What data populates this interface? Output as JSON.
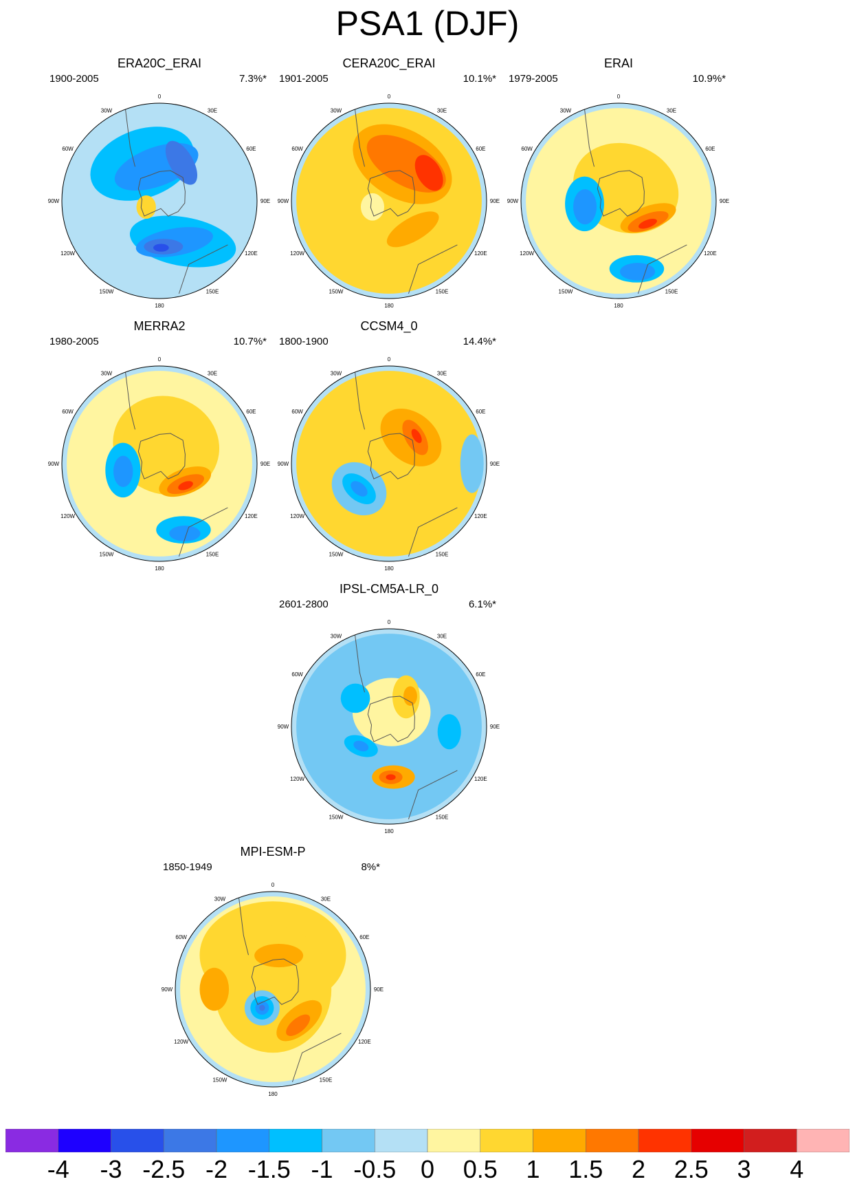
{
  "title": "PSA1 (DJF)",
  "lon_labels": [
    "0",
    "30E",
    "60E",
    "90E",
    "120E",
    "150E",
    "180",
    "150W",
    "120W",
    "90W",
    "60W",
    "30W"
  ],
  "panels": [
    {
      "id": "era20c",
      "name": "ERA20C_ERAI",
      "years": "1900-2005",
      "pct": "7.3%*",
      "blobs": [
        {
          "level": -1,
          "angle": -25,
          "dist": 0.42,
          "rx": 0.55,
          "ry": 0.35,
          "rot": -20
        },
        {
          "level": -1.5,
          "angle": -5,
          "dist": 0.35,
          "rx": 0.45,
          "ry": 0.2,
          "rot": -20
        },
        {
          "level": -2,
          "angle": 30,
          "dist": 0.45,
          "rx": 0.25,
          "ry": 0.12,
          "rot": 60
        },
        {
          "level": -1,
          "angle": 150,
          "dist": 0.48,
          "rx": 0.55,
          "ry": 0.25,
          "rot": 10
        },
        {
          "level": -1.5,
          "angle": 160,
          "dist": 0.45,
          "rx": 0.4,
          "ry": 0.14,
          "rot": -10
        },
        {
          "level": -2,
          "angle": 175,
          "dist": 0.47,
          "rx": 0.2,
          "ry": 0.08,
          "rot": 0
        },
        {
          "level": -2.5,
          "angle": 178,
          "dist": 0.48,
          "rx": 0.08,
          "ry": 0.04,
          "rot": 0
        },
        {
          "level": 0.5,
          "angle": -115,
          "dist": 0.15,
          "rx": 0.1,
          "ry": 0.12,
          "rot": 0
        }
      ]
    },
    {
      "id": "cera20c",
      "name": "CERA20C_ERAI",
      "years": "1901-2005",
      "pct": "10.1%*",
      "blobs": [
        {
          "level": 0.5,
          "angle": 0,
          "dist": 0.0,
          "rx": 0.95,
          "ry": 0.95,
          "rot": 0
        },
        {
          "level": 1,
          "angle": 20,
          "dist": 0.4,
          "rx": 0.55,
          "ry": 0.35,
          "rot": 30
        },
        {
          "level": 1.5,
          "angle": 25,
          "dist": 0.42,
          "rx": 0.45,
          "ry": 0.22,
          "rot": 30
        },
        {
          "level": 2,
          "angle": 55,
          "dist": 0.5,
          "rx": 0.2,
          "ry": 0.12,
          "rot": 60
        },
        {
          "level": 1,
          "angle": 140,
          "dist": 0.38,
          "rx": 0.3,
          "ry": 0.12,
          "rot": -30
        },
        {
          "level": 0,
          "angle": -110,
          "dist": 0.18,
          "rx": 0.12,
          "ry": 0.14,
          "rot": 0
        }
      ]
    },
    {
      "id": "erai",
      "name": "ERAI",
      "years": "1979-2005",
      "pct": "10.9%*",
      "blobs": [
        {
          "level": 0,
          "angle": 0,
          "dist": 0.0,
          "rx": 0.95,
          "ry": 0.95,
          "rot": 0
        },
        {
          "level": 0.5,
          "angle": 30,
          "dist": 0.15,
          "rx": 0.55,
          "ry": 0.45,
          "rot": 20
        },
        {
          "level": 1,
          "angle": 120,
          "dist": 0.35,
          "rx": 0.3,
          "ry": 0.12,
          "rot": -20
        },
        {
          "level": 1.5,
          "angle": 125,
          "dist": 0.37,
          "rx": 0.22,
          "ry": 0.08,
          "rot": -20
        },
        {
          "level": 2,
          "angle": 128,
          "dist": 0.38,
          "rx": 0.1,
          "ry": 0.04,
          "rot": -20
        },
        {
          "level": -1,
          "angle": -95,
          "dist": 0.35,
          "rx": 0.2,
          "ry": 0.28,
          "rot": 0
        },
        {
          "level": -1.5,
          "angle": -100,
          "dist": 0.35,
          "rx": 0.12,
          "ry": 0.18,
          "rot": 0
        },
        {
          "level": -1,
          "angle": 165,
          "dist": 0.72,
          "rx": 0.28,
          "ry": 0.14,
          "rot": 0
        },
        {
          "level": -1.5,
          "angle": 165,
          "dist": 0.75,
          "rx": 0.18,
          "ry": 0.09,
          "rot": 0
        }
      ]
    },
    {
      "id": "merra2",
      "name": "MERRA2",
      "years": "1980-2005",
      "pct": "10.7%*",
      "blobs": [
        {
          "level": 0,
          "angle": 0,
          "dist": 0.0,
          "rx": 0.95,
          "ry": 0.95,
          "rot": 0
        },
        {
          "level": 0.5,
          "angle": 20,
          "dist": 0.2,
          "rx": 0.55,
          "ry": 0.5,
          "rot": 20
        },
        {
          "level": 1,
          "angle": 125,
          "dist": 0.32,
          "rx": 0.28,
          "ry": 0.13,
          "rot": -20
        },
        {
          "level": 1.5,
          "angle": 128,
          "dist": 0.34,
          "rx": 0.2,
          "ry": 0.08,
          "rot": -20
        },
        {
          "level": 2,
          "angle": 130,
          "dist": 0.35,
          "rx": 0.08,
          "ry": 0.04,
          "rot": -20
        },
        {
          "level": -1,
          "angle": -100,
          "dist": 0.38,
          "rx": 0.18,
          "ry": 0.28,
          "rot": 0
        },
        {
          "level": -1.5,
          "angle": -102,
          "dist": 0.38,
          "rx": 0.1,
          "ry": 0.16,
          "rot": 0
        },
        {
          "level": -1,
          "angle": 160,
          "dist": 0.72,
          "rx": 0.28,
          "ry": 0.14,
          "rot": 0
        },
        {
          "level": -1.5,
          "angle": 160,
          "dist": 0.76,
          "rx": 0.16,
          "ry": 0.08,
          "rot": 0
        }
      ]
    },
    {
      "id": "ccsm4",
      "name": "CCSM4_0",
      "years": "1800-1900",
      "pct": "14.4%*",
      "blobs": [
        {
          "level": 0.5,
          "angle": 0,
          "dist": 0.0,
          "rx": 0.95,
          "ry": 0.95,
          "rot": 0
        },
        {
          "level": 0.5,
          "angle": 20,
          "dist": 0.3,
          "rx": 0.6,
          "ry": 0.5,
          "rot": 20
        },
        {
          "level": 1,
          "angle": 40,
          "dist": 0.35,
          "rx": 0.35,
          "ry": 0.25,
          "rot": 40
        },
        {
          "level": 1.5,
          "angle": 45,
          "dist": 0.38,
          "rx": 0.2,
          "ry": 0.1,
          "rot": 60
        },
        {
          "level": 2,
          "angle": 45,
          "dist": 0.4,
          "rx": 0.08,
          "ry": 0.04,
          "rot": 60
        },
        {
          "level": -0.5,
          "angle": -130,
          "dist": 0.4,
          "rx": 0.3,
          "ry": 0.25,
          "rot": 40
        },
        {
          "level": -1,
          "angle": -130,
          "dist": 0.4,
          "rx": 0.2,
          "ry": 0.12,
          "rot": 40
        },
        {
          "level": -1.5,
          "angle": -130,
          "dist": 0.4,
          "rx": 0.1,
          "ry": 0.06,
          "rot": 40
        },
        {
          "level": -0.5,
          "angle": 90,
          "dist": 0.85,
          "rx": 0.12,
          "ry": 0.3,
          "rot": 0
        }
      ]
    },
    {
      "id": "ipsl",
      "name": "IPSL-CM5A-LR_0",
      "years": "2601-2800",
      "pct": "6.1%*",
      "blobs": [
        {
          "level": -0.5,
          "angle": 0,
          "dist": 0.0,
          "rx": 0.95,
          "ry": 0.95,
          "rot": 0
        },
        {
          "level": 0,
          "angle": 10,
          "dist": 0.15,
          "rx": 0.4,
          "ry": 0.35,
          "rot": 0
        },
        {
          "level": 0.5,
          "angle": 30,
          "dist": 0.35,
          "rx": 0.14,
          "ry": 0.22,
          "rot": 0
        },
        {
          "level": 1,
          "angle": 35,
          "dist": 0.38,
          "rx": 0.07,
          "ry": 0.1,
          "rot": 0
        },
        {
          "level": -1,
          "angle": -50,
          "dist": 0.45,
          "rx": 0.15,
          "ry": 0.15,
          "rot": 0
        },
        {
          "level": -1,
          "angle": -125,
          "dist": 0.35,
          "rx": 0.18,
          "ry": 0.1,
          "rot": 20
        },
        {
          "level": -1.5,
          "angle": -125,
          "dist": 0.35,
          "rx": 0.08,
          "ry": 0.05,
          "rot": 20
        },
        {
          "level": -1,
          "angle": 95,
          "dist": 0.62,
          "rx": 0.12,
          "ry": 0.18,
          "rot": 0
        },
        {
          "level": 1,
          "angle": 175,
          "dist": 0.52,
          "rx": 0.22,
          "ry": 0.12,
          "rot": 0
        },
        {
          "level": 1.5,
          "angle": 178,
          "dist": 0.52,
          "rx": 0.12,
          "ry": 0.07,
          "rot": 0
        },
        {
          "level": 2,
          "angle": 178,
          "dist": 0.52,
          "rx": 0.05,
          "ry": 0.03,
          "rot": 0
        }
      ]
    },
    {
      "id": "mpi",
      "name": "MPI-ESM-P",
      "years": "1850-1949",
      "pct": "8%*",
      "blobs": [
        {
          "level": 0,
          "angle": 0,
          "dist": 0.0,
          "rx": 0.95,
          "ry": 0.95,
          "rot": 0
        },
        {
          "level": 0.5,
          "angle": 0,
          "dist": 0.35,
          "rx": 0.75,
          "ry": 0.55,
          "rot": 0
        },
        {
          "level": 0.5,
          "angle": 0,
          "dist": 0.0,
          "rx": 0.6,
          "ry": 0.65,
          "rot": 0
        },
        {
          "level": 1,
          "angle": -90,
          "dist": 0.6,
          "rx": 0.15,
          "ry": 0.22,
          "rot": 0
        },
        {
          "level": 1,
          "angle": 140,
          "dist": 0.42,
          "rx": 0.28,
          "ry": 0.14,
          "rot": -40
        },
        {
          "level": 1.5,
          "angle": 145,
          "dist": 0.45,
          "rx": 0.15,
          "ry": 0.07,
          "rot": -40
        },
        {
          "level": -0.5,
          "angle": -150,
          "dist": 0.22,
          "rx": 0.18,
          "ry": 0.18,
          "rot": 0
        },
        {
          "level": -1,
          "angle": -150,
          "dist": 0.22,
          "rx": 0.12,
          "ry": 0.12,
          "rot": 0
        },
        {
          "level": -1.5,
          "angle": -150,
          "dist": 0.22,
          "rx": 0.07,
          "ry": 0.07,
          "rot": 0
        },
        {
          "level": -2,
          "angle": -150,
          "dist": 0.22,
          "rx": 0.03,
          "ry": 0.03,
          "rot": 0
        },
        {
          "level": 1,
          "angle": 10,
          "dist": 0.35,
          "rx": 0.25,
          "ry": 0.12,
          "rot": 0
        }
      ]
    }
  ],
  "colorbar": {
    "colors": [
      "#8a2be2",
      "#1e00ff",
      "#2850ea",
      "#3c78e6",
      "#1e96ff",
      "#00bfff",
      "#73c8f3",
      "#b4e0f5",
      "#fff5a0",
      "#ffd730",
      "#ffaa00",
      "#ff7800",
      "#ff3300",
      "#e60000",
      "#d21e1e",
      "#ffb4b4"
    ],
    "labels": [
      "-4",
      "-3",
      "-2.5",
      "-2",
      "-1.5",
      "-1",
      "-0.5",
      "0",
      "0.5",
      "1",
      "1.5",
      "2",
      "2.5",
      "3",
      "4"
    ],
    "levels": [
      -4,
      -3,
      -2.5,
      -2,
      -1.5,
      -1,
      -0.5,
      0,
      0.5,
      1,
      1.5,
      2,
      2.5,
      3,
      4
    ]
  }
}
